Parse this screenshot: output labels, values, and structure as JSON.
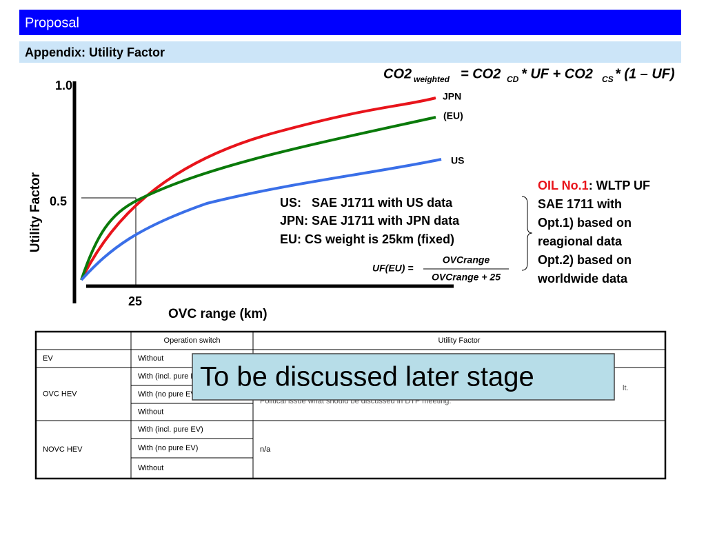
{
  "header": {
    "title": "Proposal",
    "subtitle": "Appendix: Utility Factor"
  },
  "formula": {
    "co2": "CO2",
    "weighted": "weighted",
    "eq": "= CO2",
    "cd": "CD",
    "mid": "* UF + CO2",
    "cs": "CS",
    "end": "* (1 – UF)"
  },
  "chart": {
    "y_axis_label": "Utility Factor",
    "x_axis_label": "OVC range (km)",
    "y_ticks": [
      "1.0",
      "0.5"
    ],
    "x_ticks": [
      "25"
    ],
    "series": [
      "JPN",
      "(EU)",
      "US"
    ]
  },
  "notes": {
    "lines": [
      "US:   SAE J1711 with US data",
      "JPN: SAE J1711 with JPN data",
      "EU: CS weight is 25km (fixed)"
    ],
    "uf_formula": {
      "lhs": "UF(EU) =",
      "numerator": "OVCrange",
      "denominator": "OVCrange + 25"
    }
  },
  "oil": {
    "label": "OIL No.1",
    "lines": [
      ": WLTP UF",
      "SAE 1711 with",
      "Opt.1) based on",
      "reagional data",
      "Opt.2) based on",
      "worldwide data"
    ]
  },
  "table": {
    "header": [
      "Operation switch",
      "Utility Factor"
    ],
    "groups": [
      {
        "name": "EV",
        "switches": [
          "Without"
        ],
        "factor": []
      },
      {
        "name": "OVC HEV",
        "switches": [
          "With (incl. pure EV)",
          "With (no pure EV)",
          "Without"
        ],
        "factor": [
          "lt.",
          "Political issue what should be discussed in DTP meeting."
        ]
      },
      {
        "name": "NOVC HEV",
        "switches": [
          "With (incl. pure EV)",
          "With (no pure EV)",
          "Without"
        ],
        "factor": [
          "n/a"
        ]
      }
    ]
  },
  "overlay": "To be discussed later stage"
}
